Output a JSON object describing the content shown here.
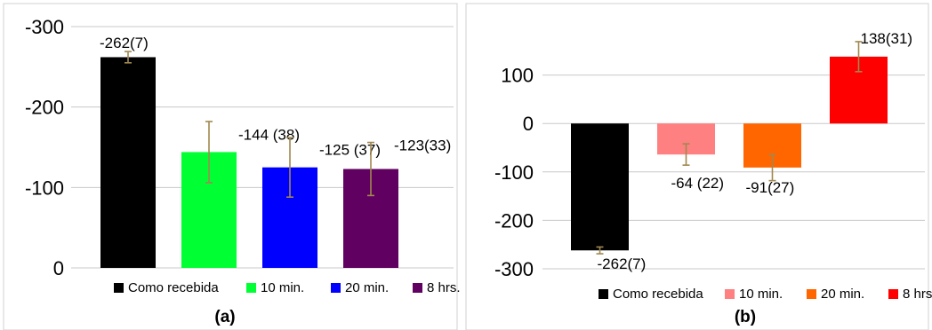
{
  "chart_data": [
    {
      "type": "bar",
      "panel_label": "(a)",
      "categories": [
        "Como recebida",
        "10 min.",
        "20 min.",
        "8 hrs."
      ],
      "values": [
        -262,
        -144,
        -125,
        -123
      ],
      "errors": [
        7,
        38,
        37,
        33
      ],
      "data_labels": [
        "-262(7)",
        "-144 (38)",
        "-125 (37)",
        "-123(33)"
      ],
      "colors": [
        "#000000",
        "#00ff33",
        "#0000ff",
        "#600060"
      ],
      "axis_reversed": true,
      "ylim": [
        -300,
        0
      ],
      "yticks": [
        -300,
        -200,
        -100,
        0
      ],
      "ytick_labels": [
        "-300",
        "-200",
        "-100",
        "0"
      ],
      "gridlines": true,
      "legend": [
        "Como recebida",
        "10 min.",
        "20 min.",
        "8 hrs."
      ],
      "legend_position": "bottom",
      "title": "",
      "xlabel": "",
      "ylabel": ""
    },
    {
      "type": "bar",
      "panel_label": "(b)",
      "categories": [
        "Como recebida",
        "10 min.",
        "20 min.",
        "8 hrs."
      ],
      "values": [
        -262,
        -64,
        -91,
        138
      ],
      "errors": [
        7,
        22,
        27,
        31
      ],
      "data_labels": [
        "-262(7)",
        "-64 (22)",
        "-91(27)",
        "138(31)"
      ],
      "colors": [
        "#000000",
        "#ff8080",
        "#ff6600",
        "#ff0000"
      ],
      "axis_reversed": false,
      "ylim": [
        -300,
        200
      ],
      "yticks": [
        -300,
        -200,
        -100,
        0,
        100
      ],
      "ytick_labels": [
        "-300",
        "-200",
        "-100",
        "0",
        "100"
      ],
      "gridlines": true,
      "legend": [
        "Como recebida",
        "10 min.",
        "20 min.",
        "8 hrs."
      ],
      "legend_position": "bottom",
      "title": "",
      "xlabel": "",
      "ylabel": ""
    }
  ],
  "style": {
    "grid_color": "#c8c8c8",
    "error_bar_color": "#a08850",
    "border_color": "#d0d0d0",
    "text_color": "#000000"
  }
}
